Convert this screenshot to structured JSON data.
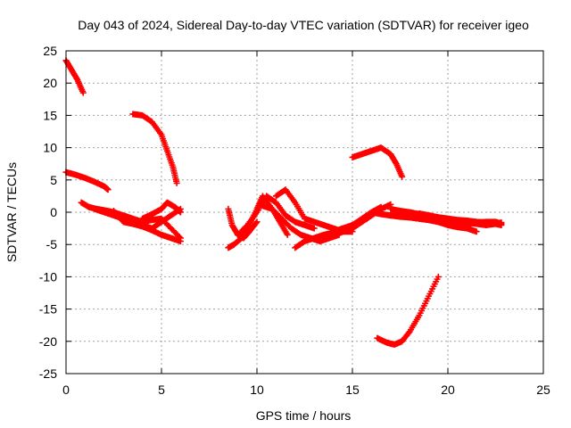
{
  "chart_data": {
    "type": "scatter",
    "title": "Day 043 of 2024, Sidereal Day-to-day VTEC variation (SDTVAR) for receiver igeo",
    "xlabel": "GPS time / hours",
    "ylabel": "SDTVAR / TECUs",
    "xlim": [
      0,
      25
    ],
    "ylim": [
      -25,
      25
    ],
    "xticks": [
      0,
      5,
      10,
      15,
      20,
      25
    ],
    "yticks": [
      -25,
      -20,
      -15,
      -10,
      -5,
      0,
      5,
      10,
      15,
      20,
      25
    ],
    "grid": true,
    "marker": "plus",
    "color": "#ff0000",
    "series": [
      {
        "name": "s1",
        "x": [
          0.0,
          0.3,
          0.6,
          0.9
        ],
        "y": [
          23.5,
          22,
          20.5,
          18.5
        ]
      },
      {
        "name": "s2",
        "x": [
          0.0,
          0.5,
          1.0,
          1.5,
          2.0,
          2.2
        ],
        "y": [
          6.2,
          5.8,
          5.3,
          4.7,
          4.0,
          3.5
        ]
      },
      {
        "name": "s3",
        "x": [
          3.5,
          4.0,
          4.5,
          5.0,
          5.3,
          5.6,
          5.8
        ],
        "y": [
          15.2,
          15.0,
          14.0,
          12.0,
          9.5,
          7.0,
          4.5
        ]
      },
      {
        "name": "s4",
        "x": [
          0.8,
          1.2,
          1.6,
          2.0,
          2.5,
          3.0,
          3.5,
          4.0,
          4.5,
          5.0,
          5.5,
          6.0
        ],
        "y": [
          1.5,
          0.8,
          0.5,
          0.3,
          0.0,
          -0.5,
          -1.0,
          -1.5,
          -1.2,
          -1.0,
          -2.5,
          -4.0
        ]
      },
      {
        "name": "s5",
        "x": [
          2.5,
          3.0,
          3.5,
          4.0,
          4.5,
          5.0,
          5.5,
          6.0
        ],
        "y": [
          0.2,
          -1.5,
          -1.8,
          -2.0,
          -2.5,
          -1.5,
          -0.5,
          0.5
        ]
      },
      {
        "name": "s6",
        "x": [
          1.5,
          2.0,
          2.5,
          3.0,
          3.5,
          4.0,
          4.5,
          5.0,
          5.5,
          6.0
        ],
        "y": [
          0.5,
          0.0,
          -0.5,
          -1.0,
          -1.8,
          -2.2,
          -2.8,
          -3.5,
          -4.0,
          -4.5
        ]
      },
      {
        "name": "s7",
        "x": [
          4.0,
          4.5,
          5.0,
          5.3,
          5.7,
          6.0
        ],
        "y": [
          -1.0,
          -0.3,
          0.5,
          1.5,
          0.8,
          0.0
        ]
      },
      {
        "name": "s8",
        "x": [
          8.5,
          8.8,
          9.2,
          9.6,
          10.0,
          10.3,
          10.8,
          11.2,
          11.6
        ],
        "y": [
          -5.5,
          -5.0,
          -4.0,
          -2.0,
          0.5,
          2.5,
          0.5,
          -1.5,
          -3.5
        ]
      },
      {
        "name": "s9",
        "x": [
          8.5,
          8.7,
          9.0,
          9.3,
          9.6,
          10.0
        ],
        "y": [
          0.5,
          -2.0,
          -3.5,
          -4.0,
          -3.0,
          -1.5
        ]
      },
      {
        "name": "s10",
        "x": [
          9.0,
          9.5,
          10.0,
          10.5,
          11.0,
          11.5,
          12.0,
          12.5,
          13.0
        ],
        "y": [
          -3.5,
          -2.0,
          0.0,
          2.5,
          1.5,
          -0.5,
          -1.5,
          -2.0,
          -2.5
        ]
      },
      {
        "name": "s11",
        "x": [
          10.3,
          10.8,
          11.3,
          11.8,
          12.3,
          12.8,
          13.3,
          13.8,
          14.3
        ],
        "y": [
          1.0,
          0.5,
          -1.0,
          -2.5,
          -3.5,
          -4.0,
          -4.5,
          -4.0,
          -3.5
        ]
      },
      {
        "name": "s12",
        "x": [
          11.0,
          11.5,
          12.0,
          12.5,
          13.0,
          13.5,
          14.0,
          14.5,
          15.0
        ],
        "y": [
          2.5,
          3.5,
          1.5,
          -1.0,
          -1.5,
          -2.0,
          -2.5,
          -3.0,
          -3.0
        ]
      },
      {
        "name": "s13",
        "x": [
          12.0,
          12.5,
          13.0,
          13.5,
          14.0,
          14.5,
          15.0,
          15.5,
          16.0,
          16.5
        ],
        "y": [
          -5.5,
          -4.5,
          -4.0,
          -3.5,
          -3.2,
          -3.0,
          -2.5,
          -1.5,
          -0.5,
          0.5
        ]
      },
      {
        "name": "s14",
        "x": [
          13.5,
          14.0,
          14.5,
          15.0,
          15.5,
          16.0,
          16.5
        ],
        "y": [
          -4.0,
          -3.5,
          -3.0,
          -2.0,
          -1.0,
          0.0,
          0.8
        ]
      },
      {
        "name": "s15",
        "x": [
          14.0,
          14.5,
          15.0,
          15.5,
          16.0,
          16.5,
          17.0
        ],
        "y": [
          -3.0,
          -2.5,
          -2.0,
          -1.5,
          -0.5,
          0.5,
          1.2
        ]
      },
      {
        "name": "s16",
        "x": [
          15.0,
          15.5,
          16.0,
          16.5,
          17.0,
          17.3,
          17.6
        ],
        "y": [
          8.5,
          9.0,
          9.5,
          10.0,
          9.0,
          7.5,
          5.5
        ]
      },
      {
        "name": "s17",
        "x": [
          16.0,
          16.5,
          17.0,
          17.5,
          18.0,
          18.5,
          19.0,
          19.5,
          20.0,
          20.5,
          21.0,
          21.5,
          22.0,
          22.5,
          22.8
        ],
        "y": [
          0.0,
          -0.3,
          -0.5,
          -0.7,
          -0.8,
          -1.0,
          -1.2,
          -1.5,
          -1.8,
          -2.0,
          -1.8,
          -1.6,
          -1.5,
          -1.5,
          -1.8
        ]
      },
      {
        "name": "s18",
        "x": [
          17.0,
          17.5,
          18.0,
          18.5,
          19.0,
          19.5,
          20.0,
          20.5,
          21.0,
          21.5,
          22.0,
          22.5,
          22.8
        ],
        "y": [
          0.5,
          0.2,
          0.0,
          -0.3,
          -0.5,
          -0.8,
          -1.0,
          -1.2,
          -1.3,
          -1.5,
          -1.6,
          -1.8,
          -2.0
        ]
      },
      {
        "name": "s19",
        "x": [
          17.0,
          17.5,
          18.0,
          18.5,
          19.0,
          19.5,
          20.0,
          20.5,
          21.0,
          21.5
        ],
        "y": [
          -0.5,
          -0.5,
          -0.8,
          -1.0,
          -1.2,
          -1.5,
          -2.0,
          -2.3,
          -2.5,
          -3.0
        ]
      },
      {
        "name": "s20",
        "x": [
          16.3,
          16.8,
          17.2,
          17.6,
          18.0,
          18.5,
          19.0,
          19.5
        ],
        "y": [
          -19.5,
          -20.2,
          -20.5,
          -20.0,
          -18.5,
          -16.0,
          -13.0,
          -10.0
        ]
      },
      {
        "name": "s21",
        "x": [
          18.5,
          19.0,
          19.5,
          20.0,
          20.5,
          21.0,
          21.5,
          22.0,
          22.5,
          22.8
        ],
        "y": [
          -0.2,
          -0.5,
          -0.8,
          -1.0,
          -1.3,
          -1.6,
          -1.8,
          -2.0,
          -1.8,
          -1.6
        ]
      }
    ]
  }
}
